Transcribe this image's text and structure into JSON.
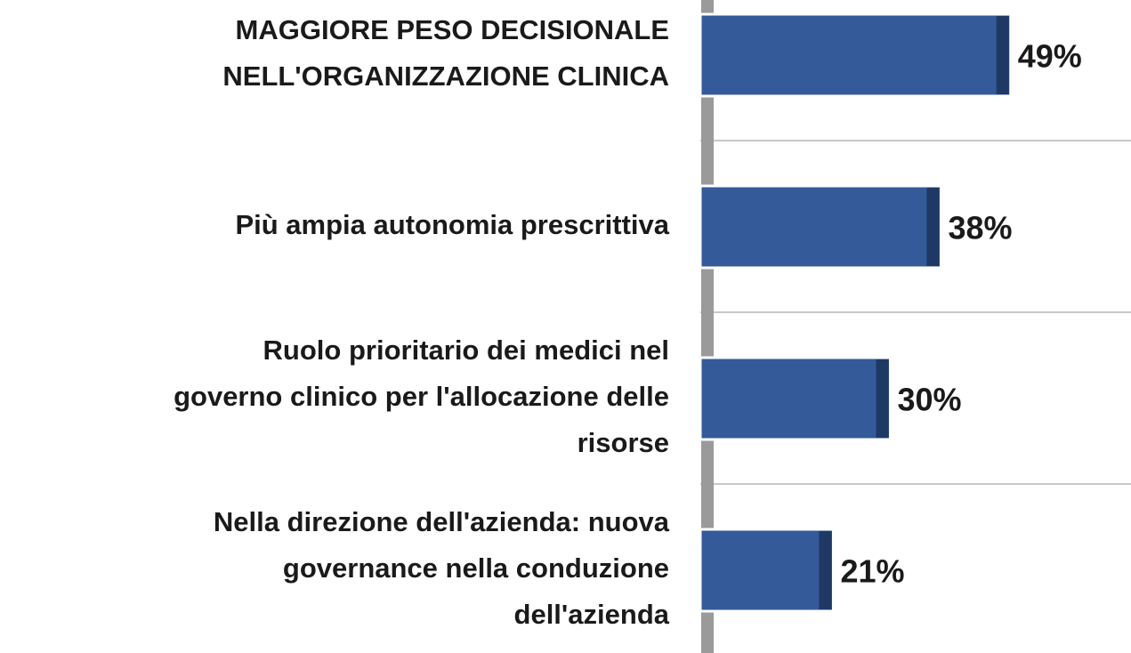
{
  "chart_data": {
    "type": "bar",
    "orientation": "horizontal",
    "categories": [
      "MAGGIORE PESO DECISIONALE\nNELL'ORGANIZZAZIONE CLINICA",
      "Più ampia autonomia prescrittiva",
      "Ruolo prioritario dei medici nel\ngoverno clinico per l'allocazione delle\nrisorse",
      "Nella direzione dell'azienda: nuova\ngovernance nella conduzione\ndell'azienda"
    ],
    "values": [
      49,
      38,
      30,
      21
    ],
    "value_labels": [
      "49%",
      "38%",
      "30%",
      "21%"
    ],
    "color": "#345a9a",
    "xlim": [
      0,
      68
    ],
    "grid": true
  }
}
